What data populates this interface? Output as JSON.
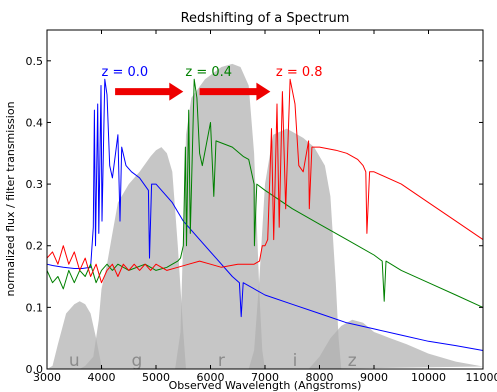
{
  "chart_data": {
    "type": "line",
    "title": "Redshifting of a Spectrum",
    "xlabel": "Observed Wavelength (Angstroms)",
    "ylabel": "normalized flux / filter transmission",
    "xlim": [
      3000,
      11000
    ],
    "ylim": [
      0.0,
      0.55
    ],
    "x_ticks": [
      "3000",
      "4000",
      "5000",
      "6000",
      "7000",
      "8000",
      "9000",
      "10000",
      "11000"
    ],
    "y_ticks": [
      "0.0",
      "0.1",
      "0.2",
      "0.3",
      "0.4",
      "0.5"
    ],
    "grid": false,
    "colors": {
      "z0": "#0000ff",
      "z04": "#008000",
      "z08": "#ff0000",
      "arrow": "#ee0000",
      "filter_fill": "#b0b0b0",
      "filter_overlap": "#8c8c8c",
      "filter_label": "#8a8a8a"
    },
    "filters": [
      {
        "name": "u",
        "label_x": 3500,
        "points": [
          [
            3000,
            0
          ],
          [
            3100,
            0.005
          ],
          [
            3200,
            0.04
          ],
          [
            3350,
            0.09
          ],
          [
            3500,
            0.105
          ],
          [
            3600,
            0.11
          ],
          [
            3700,
            0.105
          ],
          [
            3800,
            0.09
          ],
          [
            3900,
            0.05
          ],
          [
            4000,
            0.005
          ],
          [
            4050,
            0
          ]
        ]
      },
      {
        "name": "g",
        "label_x": 4650,
        "points": [
          [
            3600,
            0
          ],
          [
            3700,
            0.005
          ],
          [
            3850,
            0.02
          ],
          [
            3950,
            0.08
          ],
          [
            4000,
            0.13
          ],
          [
            4100,
            0.17
          ],
          [
            4200,
            0.22
          ],
          [
            4300,
            0.27
          ],
          [
            4500,
            0.3
          ],
          [
            4700,
            0.32
          ],
          [
            4900,
            0.345
          ],
          [
            5000,
            0.355
          ],
          [
            5100,
            0.36
          ],
          [
            5200,
            0.35
          ],
          [
            5300,
            0.32
          ],
          [
            5400,
            0.2
          ],
          [
            5500,
            0.06
          ],
          [
            5550,
            0.0
          ]
        ]
      },
      {
        "name": "r",
        "label_x": 6200,
        "points": [
          [
            5350,
            0
          ],
          [
            5450,
            0.06
          ],
          [
            5500,
            0.22
          ],
          [
            5550,
            0.38
          ],
          [
            5650,
            0.44
          ],
          [
            5900,
            0.47
          ],
          [
            6200,
            0.49
          ],
          [
            6400,
            0.495
          ],
          [
            6550,
            0.49
          ],
          [
            6700,
            0.46
          ],
          [
            6800,
            0.35
          ],
          [
            6900,
            0.12
          ],
          [
            6950,
            0.03
          ],
          [
            7000,
            0
          ]
        ]
      },
      {
        "name": "i",
        "label_x": 7550,
        "points": [
          [
            6700,
            0
          ],
          [
            6800,
            0.03
          ],
          [
            6900,
            0.15
          ],
          [
            7000,
            0.3
          ],
          [
            7150,
            0.38
          ],
          [
            7400,
            0.39
          ],
          [
            7700,
            0.375
          ],
          [
            7900,
            0.36
          ],
          [
            8100,
            0.33
          ],
          [
            8200,
            0.28
          ],
          [
            8300,
            0.14
          ],
          [
            8350,
            0.05
          ],
          [
            8400,
            0
          ]
        ]
      },
      {
        "name": "z",
        "label_x": 8600,
        "points": [
          [
            7800,
            0
          ],
          [
            8000,
            0.02
          ],
          [
            8200,
            0.05
          ],
          [
            8400,
            0.07
          ],
          [
            8600,
            0.08
          ],
          [
            8800,
            0.075
          ],
          [
            9000,
            0.06
          ],
          [
            9300,
            0.05
          ],
          [
            9600,
            0.04
          ],
          [
            10000,
            0.025
          ],
          [
            10500,
            0.012
          ],
          [
            11000,
            0.004
          ]
        ]
      }
    ],
    "series": [
      {
        "name": "z = 0.0",
        "points": [
          [
            3000,
            0.17
          ],
          [
            3100,
            0.168
          ],
          [
            3300,
            0.165
          ],
          [
            3500,
            0.163
          ],
          [
            3650,
            0.163
          ],
          [
            3800,
            0.165
          ],
          [
            3850,
            0.23
          ],
          [
            3870,
            0.42
          ],
          [
            3890,
            0.2
          ],
          [
            3930,
            0.43
          ],
          [
            3950,
            0.22
          ],
          [
            3990,
            0.46
          ],
          [
            4010,
            0.24
          ],
          [
            4060,
            0.47
          ],
          [
            4100,
            0.445
          ],
          [
            4150,
            0.33
          ],
          [
            4200,
            0.31
          ],
          [
            4300,
            0.38
          ],
          [
            4340,
            0.24
          ],
          [
            4370,
            0.36
          ],
          [
            4450,
            0.33
          ],
          [
            4550,
            0.32
          ],
          [
            4700,
            0.31
          ],
          [
            4861,
            0.29
          ],
          [
            4880,
            0.18
          ],
          [
            4920,
            0.3
          ],
          [
            5000,
            0.3
          ],
          [
            5300,
            0.27
          ],
          [
            5500,
            0.24
          ],
          [
            5800,
            0.21
          ],
          [
            6100,
            0.18
          ],
          [
            6400,
            0.15
          ],
          [
            6530,
            0.14
          ],
          [
            6563,
            0.085
          ],
          [
            6600,
            0.14
          ],
          [
            7000,
            0.12
          ],
          [
            7500,
            0.105
          ],
          [
            8000,
            0.09
          ],
          [
            8500,
            0.075
          ],
          [
            9000,
            0.065
          ],
          [
            9500,
            0.055
          ],
          [
            10000,
            0.045
          ],
          [
            10500,
            0.038
          ],
          [
            11000,
            0.03
          ]
        ]
      },
      {
        "name": "z = 0.4",
        "points": [
          [
            3000,
            0.16
          ],
          [
            3100,
            0.14
          ],
          [
            3200,
            0.15
          ],
          [
            3300,
            0.13
          ],
          [
            3400,
            0.16
          ],
          [
            3500,
            0.14
          ],
          [
            3600,
            0.16
          ],
          [
            3700,
            0.15
          ],
          [
            3800,
            0.17
          ],
          [
            3900,
            0.14
          ],
          [
            4000,
            0.16
          ],
          [
            4100,
            0.17
          ],
          [
            4200,
            0.16
          ],
          [
            4300,
            0.17
          ],
          [
            4500,
            0.16
          ],
          [
            4800,
            0.17
          ],
          [
            5000,
            0.16
          ],
          [
            5200,
            0.165
          ],
          [
            5300,
            0.17
          ],
          [
            5400,
            0.175
          ],
          [
            5450,
            0.18
          ],
          [
            5500,
            0.2
          ],
          [
            5540,
            0.36
          ],
          [
            5560,
            0.2
          ],
          [
            5600,
            0.42
          ],
          [
            5630,
            0.22
          ],
          [
            5700,
            0.47
          ],
          [
            5750,
            0.44
          ],
          [
            5800,
            0.35
          ],
          [
            5850,
            0.33
          ],
          [
            6000,
            0.4
          ],
          [
            6060,
            0.28
          ],
          [
            6100,
            0.37
          ],
          [
            6400,
            0.36
          ],
          [
            6600,
            0.345
          ],
          [
            6700,
            0.34
          ],
          [
            6800,
            0.3
          ],
          [
            6805,
            0.2
          ],
          [
            6850,
            0.3
          ],
          [
            7000,
            0.29
          ],
          [
            7500,
            0.26
          ],
          [
            8000,
            0.235
          ],
          [
            8500,
            0.21
          ],
          [
            9000,
            0.185
          ],
          [
            9150,
            0.175
          ],
          [
            9188,
            0.11
          ],
          [
            9220,
            0.175
          ],
          [
            9500,
            0.16
          ],
          [
            10000,
            0.14
          ],
          [
            10500,
            0.12
          ],
          [
            11000,
            0.1
          ]
        ]
      },
      {
        "name": "z = 0.8",
        "points": [
          [
            3000,
            0.18
          ],
          [
            3100,
            0.19
          ],
          [
            3200,
            0.17
          ],
          [
            3300,
            0.2
          ],
          [
            3400,
            0.17
          ],
          [
            3500,
            0.19
          ],
          [
            3600,
            0.16
          ],
          [
            3700,
            0.18
          ],
          [
            3800,
            0.15
          ],
          [
            3900,
            0.17
          ],
          [
            4000,
            0.14
          ],
          [
            4100,
            0.16
          ],
          [
            4200,
            0.17
          ],
          [
            4300,
            0.15
          ],
          [
            4400,
            0.17
          ],
          [
            4500,
            0.16
          ],
          [
            4600,
            0.17
          ],
          [
            4700,
            0.16
          ],
          [
            4800,
            0.17
          ],
          [
            4900,
            0.16
          ],
          [
            5000,
            0.17
          ],
          [
            5200,
            0.16
          ],
          [
            5400,
            0.165
          ],
          [
            5600,
            0.17
          ],
          [
            5800,
            0.175
          ],
          [
            6000,
            0.17
          ],
          [
            6200,
            0.165
          ],
          [
            6500,
            0.17
          ],
          [
            6800,
            0.17
          ],
          [
            6900,
            0.175
          ],
          [
            6950,
            0.2
          ],
          [
            7000,
            0.2
          ],
          [
            7050,
            0.21
          ],
          [
            7120,
            0.39
          ],
          [
            7160,
            0.21
          ],
          [
            7220,
            0.43
          ],
          [
            7260,
            0.23
          ],
          [
            7320,
            0.45
          ],
          [
            7380,
            0.26
          ],
          [
            7460,
            0.47
          ],
          [
            7550,
            0.43
          ],
          [
            7620,
            0.33
          ],
          [
            7700,
            0.32
          ],
          [
            7800,
            0.37
          ],
          [
            7812,
            0.26
          ],
          [
            7860,
            0.36
          ],
          [
            8000,
            0.36
          ],
          [
            8300,
            0.355
          ],
          [
            8500,
            0.35
          ],
          [
            8700,
            0.34
          ],
          [
            8800,
            0.33
          ],
          [
            8850,
            0.32
          ],
          [
            8870,
            0.22
          ],
          [
            8920,
            0.32
          ],
          [
            9000,
            0.32
          ],
          [
            9500,
            0.3
          ],
          [
            10000,
            0.27
          ],
          [
            10500,
            0.24
          ],
          [
            11000,
            0.21
          ]
        ]
      }
    ],
    "annotations": [
      {
        "text": "z = 0.0",
        "x": 4000,
        "y": 0.475,
        "color": "#0000ff"
      },
      {
        "text": "z = 0.4",
        "x": 5540,
        "y": 0.475,
        "color": "#008000"
      },
      {
        "text": "z = 0.8",
        "x": 7200,
        "y": 0.475,
        "color": "#ff0000"
      }
    ],
    "arrows": [
      {
        "x_start": 4250,
        "x_end": 5500,
        "y": 0.45
      },
      {
        "x_start": 5800,
        "x_end": 7100,
        "y": 0.45
      }
    ]
  }
}
